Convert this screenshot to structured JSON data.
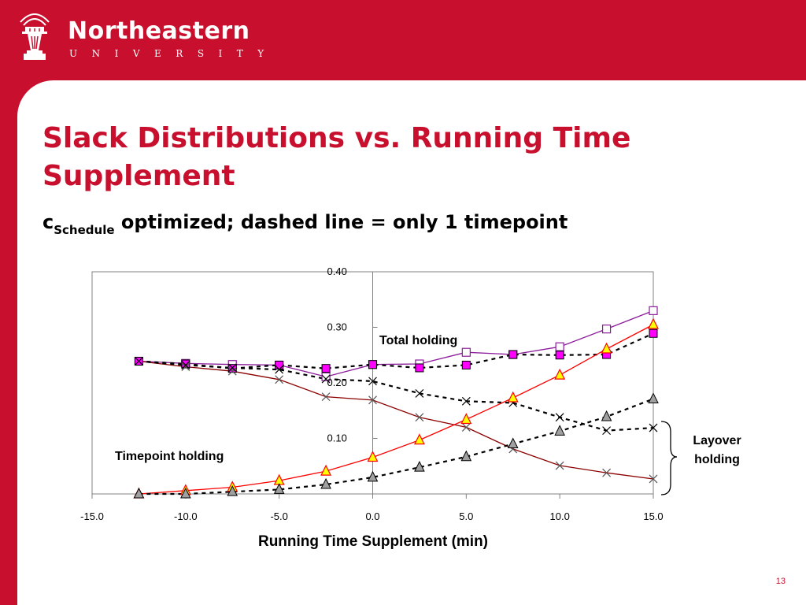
{
  "header": {
    "brand_name": "Northeastern",
    "brand_sub": "UNIVERSITY",
    "logo_icon": "torch-logo-icon"
  },
  "slide": {
    "title": "Slack Distributions vs. Running Time Supplement",
    "subtitle_var": "c",
    "subtitle_var_sub": "Schedule",
    "subtitle_rest": " optimized; dashed line = only 1 timepoint",
    "page_number": "13"
  },
  "colors": {
    "brand_red": "#c8102e",
    "total_purple": "#8b1a9a",
    "total_magenta_fill": "#ff00ff",
    "timepoint_darkred": "#8b0000",
    "layover_red": "#ff0000",
    "triangle_yellow": "#ffff00",
    "triangle_gray": "#a0a0a0"
  },
  "chart_data": {
    "type": "line",
    "xlabel": "Running Time Supplement (min)",
    "ylabel": "",
    "xlim": [
      -15,
      15
    ],
    "ylim": [
      0,
      0.4
    ],
    "x_ticks": [
      "-15.0",
      "-10.0",
      "-5.0",
      "0.0",
      "5.0",
      "10.0",
      "15.0"
    ],
    "y_ticks": [
      "0.10",
      "0.20",
      "0.30",
      "0.40"
    ],
    "y_tick_values": [
      0.1,
      0.2,
      0.3,
      0.4
    ],
    "grid": false,
    "annotations": {
      "total": "Total holding",
      "timepoint": "Timepoint holding",
      "layover": "Layover holding"
    },
    "series": [
      {
        "key": "total_multi",
        "style": "solid",
        "color": "#8b1a9a",
        "marker": "square-open",
        "x": [
          -12.5,
          -10,
          -7.5,
          -5,
          -2.5,
          0,
          2.5,
          5,
          7.5,
          10,
          12.5,
          15
        ],
        "y": [
          0.239,
          0.235,
          0.233,
          0.232,
          0.211,
          0.233,
          0.234,
          0.255,
          0.251,
          0.265,
          0.297,
          0.33
        ]
      },
      {
        "key": "total_single",
        "style": "dashed",
        "color": "#000000",
        "marker": "square-filled",
        "x": [
          -12.5,
          -10,
          -7.5,
          -5,
          -2.5,
          0,
          2.5,
          5,
          7.5,
          10,
          12.5,
          15
        ],
        "y": [
          0.239,
          0.234,
          0.226,
          0.232,
          0.226,
          0.233,
          0.227,
          0.232,
          0.251,
          0.25,
          0.251,
          0.289
        ]
      },
      {
        "key": "timepoint_multi",
        "style": "solid",
        "color": "#8b0000",
        "marker": "x",
        "x": [
          -12.5,
          -10,
          -7.5,
          -5,
          -2.5,
          0,
          2.5,
          5,
          7.5,
          10,
          12.5,
          15
        ],
        "y": [
          0.239,
          0.229,
          0.221,
          0.206,
          0.175,
          0.169,
          0.138,
          0.12,
          0.081,
          0.051,
          0.038,
          0.027
        ]
      },
      {
        "key": "timepoint_single",
        "style": "dashed",
        "color": "#000000",
        "marker": "x",
        "x": [
          -12.5,
          -10,
          -7.5,
          -5,
          -2.5,
          0,
          2.5,
          5,
          7.5,
          10,
          12.5,
          15
        ],
        "y": [
          0.239,
          0.232,
          0.227,
          0.224,
          0.207,
          0.203,
          0.181,
          0.167,
          0.164,
          0.138,
          0.114,
          0.119
        ]
      },
      {
        "key": "layover_multi",
        "style": "solid",
        "color": "#ff0000",
        "marker": "triangle-yellow",
        "x": [
          -12.5,
          -10,
          -7.5,
          -5,
          -2.5,
          0,
          2.5,
          5,
          7.5,
          10,
          12.5,
          15
        ],
        "y": [
          0.0,
          0.006,
          0.012,
          0.024,
          0.041,
          0.066,
          0.097,
          0.134,
          0.173,
          0.214,
          0.261,
          0.305
        ]
      },
      {
        "key": "layover_single",
        "style": "dashed",
        "color": "#000000",
        "marker": "triangle-gray",
        "x": [
          -12.5,
          -10,
          -7.5,
          -5,
          -2.5,
          0,
          2.5,
          5,
          7.5,
          10,
          12.5,
          15
        ],
        "y": [
          0.0,
          0.0,
          0.004,
          0.008,
          0.017,
          0.03,
          0.048,
          0.067,
          0.09,
          0.113,
          0.139,
          0.171
        ]
      }
    ]
  }
}
